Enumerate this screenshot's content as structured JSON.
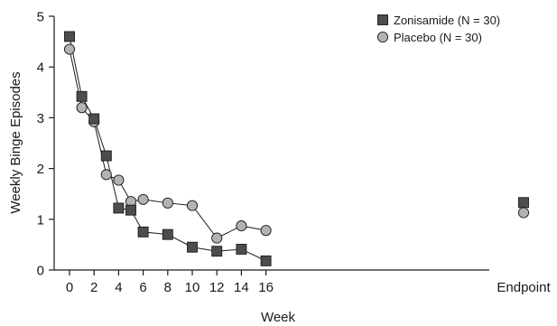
{
  "chart_data": {
    "type": "line",
    "xlabel": "Week",
    "ylabel": "Weekly Binge Episodes",
    "ylim": [
      0,
      5
    ],
    "y_ticks": [
      0,
      1,
      2,
      3,
      4,
      5
    ],
    "x_ticks": [
      "0",
      "2",
      "4",
      "6",
      "8",
      "10",
      "12",
      "14",
      "16",
      "Endpoint"
    ],
    "legend_position": "top-right",
    "grid": false,
    "series": [
      {
        "name": "Zonisamide (N = 30)",
        "marker": "square",
        "color": "#4d4d4d",
        "x": [
          0,
          1,
          2,
          3,
          4,
          5,
          6,
          8,
          10,
          12,
          14,
          16
        ],
        "y": [
          4.6,
          3.42,
          2.98,
          2.25,
          1.22,
          1.18,
          0.75,
          0.7,
          0.45,
          0.37,
          0.41,
          0.18
        ],
        "endpoint": 1.33
      },
      {
        "name": "Placebo (N = 30)",
        "marker": "circle",
        "color": "#b3b3b3",
        "x": [
          0,
          1,
          2,
          3,
          4,
          5,
          6,
          8,
          10,
          12,
          14,
          16
        ],
        "y": [
          4.35,
          3.2,
          2.92,
          1.88,
          1.77,
          1.35,
          1.39,
          1.32,
          1.27,
          0.63,
          0.87,
          0.78
        ],
        "endpoint": 1.13
      }
    ]
  }
}
